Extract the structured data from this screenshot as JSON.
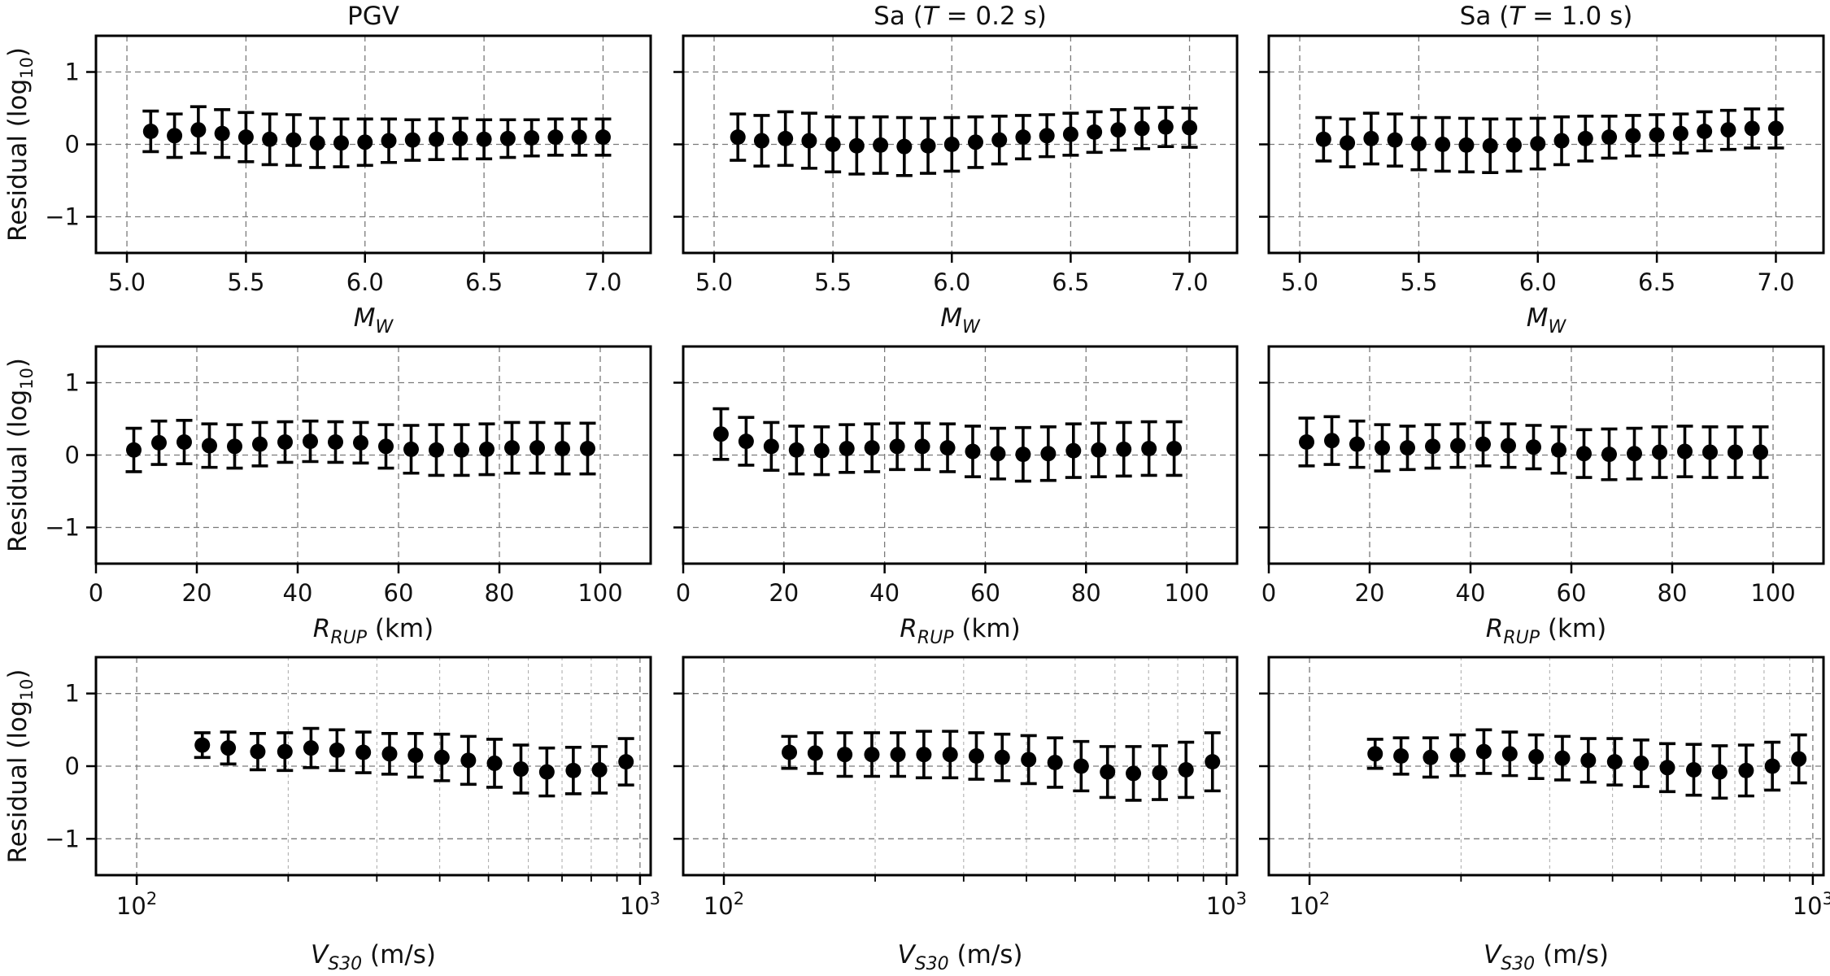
{
  "figure": {
    "column_titles": [
      {
        "text": "PGV"
      },
      {
        "prefix": "Sa (",
        "italic": "T",
        "suffix": " = 0.2 s)"
      },
      {
        "prefix": "Sa (",
        "italic": "T",
        "suffix": " = 1.0 s)"
      }
    ],
    "ylabel": {
      "main": "Residual (log",
      "sub": "10",
      "end": ")"
    },
    "xlabels": [
      {
        "italic": "M",
        "sub": "W",
        "rest": ""
      },
      {
        "italic": "R",
        "sub": "RUP",
        "rest": " (km)"
      },
      {
        "italic": "V",
        "sub": "S30",
        "rest": " (m/s)"
      }
    ],
    "yticks": [
      -1,
      0,
      1
    ],
    "log_tick_labels": [
      {
        "base": "10",
        "exp": "2",
        "value": 100
      },
      {
        "base": "10",
        "exp": "3",
        "value": 1000
      }
    ]
  },
  "chart_data": [
    {
      "type": "errorbar",
      "row": 0,
      "col": 0,
      "title": "PGV",
      "xlabel": "M_W",
      "ylabel": "Residual (log10)",
      "xscale": "linear",
      "xlim": [
        4.87,
        7.2
      ],
      "ylim": [
        -1.5,
        1.5
      ],
      "xticks": [
        5.0,
        5.5,
        6.0,
        6.5,
        7.0
      ],
      "xticklabels": [
        "5.0",
        "5.5",
        "6.0",
        "6.5",
        "7.0"
      ],
      "x": [
        5.1,
        5.2,
        5.3,
        5.4,
        5.5,
        5.6,
        5.7,
        5.8,
        5.9,
        6.0,
        6.1,
        6.2,
        6.3,
        6.4,
        6.5,
        6.6,
        6.7,
        6.8,
        6.9,
        7.0
      ],
      "y": [
        0.18,
        0.12,
        0.2,
        0.15,
        0.1,
        0.07,
        0.06,
        0.02,
        0.02,
        0.03,
        0.05,
        0.06,
        0.07,
        0.08,
        0.07,
        0.08,
        0.09,
        0.1,
        0.1,
        0.1
      ],
      "err": [
        0.28,
        0.3,
        0.32,
        0.33,
        0.34,
        0.35,
        0.35,
        0.34,
        0.33,
        0.32,
        0.3,
        0.28,
        0.28,
        0.28,
        0.27,
        0.26,
        0.25,
        0.25,
        0.25,
        0.25
      ]
    },
    {
      "type": "errorbar",
      "row": 0,
      "col": 1,
      "title": "Sa (T = 0.2 s)",
      "xlabel": "M_W",
      "ylabel": "Residual (log10)",
      "xscale": "linear",
      "xlim": [
        4.87,
        7.2
      ],
      "ylim": [
        -1.5,
        1.5
      ],
      "xticks": [
        5.0,
        5.5,
        6.0,
        6.5,
        7.0
      ],
      "xticklabels": [
        "5.0",
        "5.5",
        "6.0",
        "6.5",
        "7.0"
      ],
      "x": [
        5.1,
        5.2,
        5.3,
        5.4,
        5.5,
        5.6,
        5.7,
        5.8,
        5.9,
        6.0,
        6.1,
        6.2,
        6.3,
        6.4,
        6.5,
        6.6,
        6.7,
        6.8,
        6.9,
        7.0
      ],
      "y": [
        0.1,
        0.05,
        0.08,
        0.05,
        0.0,
        -0.02,
        -0.01,
        -0.03,
        -0.02,
        0.0,
        0.03,
        0.06,
        0.1,
        0.12,
        0.14,
        0.17,
        0.2,
        0.22,
        0.24,
        0.23
      ],
      "err": [
        0.32,
        0.35,
        0.37,
        0.38,
        0.38,
        0.39,
        0.39,
        0.4,
        0.38,
        0.37,
        0.35,
        0.33,
        0.3,
        0.29,
        0.29,
        0.28,
        0.28,
        0.28,
        0.27,
        0.27
      ]
    },
    {
      "type": "errorbar",
      "row": 0,
      "col": 2,
      "title": "Sa (T = 1.0 s)",
      "xlabel": "M_W",
      "ylabel": "Residual (log10)",
      "xscale": "linear",
      "xlim": [
        4.87,
        7.2
      ],
      "ylim": [
        -1.5,
        1.5
      ],
      "xticks": [
        5.0,
        5.5,
        6.0,
        6.5,
        7.0
      ],
      "xticklabels": [
        "5.0",
        "5.5",
        "6.0",
        "6.5",
        "7.0"
      ],
      "x": [
        5.1,
        5.2,
        5.3,
        5.4,
        5.5,
        5.6,
        5.7,
        5.8,
        5.9,
        6.0,
        6.1,
        6.2,
        6.3,
        6.4,
        6.5,
        6.6,
        6.7,
        6.8,
        6.9,
        7.0
      ],
      "y": [
        0.07,
        0.02,
        0.08,
        0.06,
        0.01,
        0.0,
        -0.01,
        -0.02,
        -0.01,
        0.01,
        0.05,
        0.08,
        0.1,
        0.12,
        0.13,
        0.15,
        0.18,
        0.2,
        0.22,
        0.22
      ],
      "err": [
        0.3,
        0.33,
        0.35,
        0.36,
        0.36,
        0.37,
        0.37,
        0.37,
        0.36,
        0.35,
        0.33,
        0.31,
        0.29,
        0.28,
        0.28,
        0.27,
        0.27,
        0.27,
        0.27,
        0.27
      ]
    },
    {
      "type": "errorbar",
      "row": 1,
      "col": 0,
      "title": "PGV",
      "xlabel": "R_RUP (km)",
      "ylabel": "Residual (log10)",
      "xscale": "linear",
      "xlim": [
        0,
        110
      ],
      "ylim": [
        -1.5,
        1.5
      ],
      "xticks": [
        0,
        20,
        40,
        60,
        80,
        100
      ],
      "xticklabels": [
        "0",
        "20",
        "40",
        "60",
        "80",
        "100"
      ],
      "x": [
        7.5,
        12.5,
        17.5,
        22.5,
        27.5,
        32.5,
        37.5,
        42.5,
        47.5,
        52.5,
        57.5,
        62.5,
        67.5,
        72.5,
        77.5,
        82.5,
        87.5,
        92.5,
        97.5
      ],
      "y": [
        0.07,
        0.17,
        0.18,
        0.13,
        0.12,
        0.15,
        0.18,
        0.19,
        0.18,
        0.17,
        0.12,
        0.08,
        0.07,
        0.07,
        0.08,
        0.1,
        0.1,
        0.09,
        0.09
      ],
      "err": [
        0.3,
        0.3,
        0.3,
        0.3,
        0.3,
        0.3,
        0.28,
        0.28,
        0.28,
        0.28,
        0.3,
        0.33,
        0.35,
        0.35,
        0.35,
        0.35,
        0.35,
        0.35,
        0.35
      ]
    },
    {
      "type": "errorbar",
      "row": 1,
      "col": 1,
      "title": "Sa (T = 0.2 s)",
      "xlabel": "R_RUP (km)",
      "ylabel": "Residual (log10)",
      "xscale": "linear",
      "xlim": [
        0,
        110
      ],
      "ylim": [
        -1.5,
        1.5
      ],
      "xticks": [
        0,
        20,
        40,
        60,
        80,
        100
      ],
      "xticklabels": [
        "0",
        "20",
        "40",
        "60",
        "80",
        "100"
      ],
      "x": [
        7.5,
        12.5,
        17.5,
        22.5,
        27.5,
        32.5,
        37.5,
        42.5,
        47.5,
        52.5,
        57.5,
        62.5,
        67.5,
        72.5,
        77.5,
        82.5,
        87.5,
        92.5,
        97.5
      ],
      "y": [
        0.29,
        0.19,
        0.12,
        0.07,
        0.06,
        0.09,
        0.1,
        0.12,
        0.12,
        0.1,
        0.05,
        0.02,
        0.01,
        0.02,
        0.06,
        0.07,
        0.08,
        0.09,
        0.09
      ],
      "err": [
        0.35,
        0.33,
        0.33,
        0.33,
        0.33,
        0.33,
        0.33,
        0.32,
        0.32,
        0.33,
        0.35,
        0.35,
        0.37,
        0.37,
        0.37,
        0.37,
        0.37,
        0.37,
        0.37
      ]
    },
    {
      "type": "errorbar",
      "row": 1,
      "col": 2,
      "title": "Sa (T = 1.0 s)",
      "xlabel": "R_RUP (km)",
      "ylabel": "Residual (log10)",
      "xscale": "linear",
      "xlim": [
        0,
        110
      ],
      "ylim": [
        -1.5,
        1.5
      ],
      "xticks": [
        0,
        20,
        40,
        60,
        80,
        100
      ],
      "xticklabels": [
        "0",
        "20",
        "40",
        "60",
        "80",
        "100"
      ],
      "x": [
        7.5,
        12.5,
        17.5,
        22.5,
        27.5,
        32.5,
        37.5,
        42.5,
        47.5,
        52.5,
        57.5,
        62.5,
        67.5,
        72.5,
        77.5,
        82.5,
        87.5,
        92.5,
        97.5
      ],
      "y": [
        0.18,
        0.2,
        0.15,
        0.1,
        0.1,
        0.12,
        0.13,
        0.15,
        0.13,
        0.11,
        0.07,
        0.02,
        0.01,
        0.02,
        0.04,
        0.05,
        0.04,
        0.04,
        0.04
      ],
      "err": [
        0.33,
        0.33,
        0.32,
        0.32,
        0.3,
        0.3,
        0.3,
        0.3,
        0.3,
        0.3,
        0.32,
        0.33,
        0.35,
        0.35,
        0.35,
        0.35,
        0.35,
        0.35,
        0.35
      ]
    },
    {
      "type": "errorbar",
      "row": 2,
      "col": 0,
      "title": "PGV",
      "xlabel": "V_S30 (m/s)",
      "ylabel": "Residual (log10)",
      "xscale": "log",
      "xlim": [
        83,
        1050
      ],
      "ylim": [
        -1.5,
        1.5
      ],
      "minor_grid": [
        200,
        300,
        400,
        500,
        600,
        700,
        800,
        900
      ],
      "x": [
        135,
        152,
        174,
        197,
        222,
        250,
        282,
        318,
        358,
        404,
        456,
        514,
        580,
        653,
        737,
        831,
        938
      ],
      "y": [
        0.29,
        0.25,
        0.2,
        0.2,
        0.25,
        0.22,
        0.19,
        0.17,
        0.15,
        0.12,
        0.08,
        0.04,
        -0.04,
        -0.08,
        -0.06,
        -0.05,
        0.06
      ],
      "err": [
        0.17,
        0.22,
        0.25,
        0.26,
        0.27,
        0.28,
        0.28,
        0.28,
        0.3,
        0.32,
        0.33,
        0.33,
        0.33,
        0.33,
        0.32,
        0.32,
        0.32
      ]
    },
    {
      "type": "errorbar",
      "row": 2,
      "col": 1,
      "title": "Sa (T = 0.2 s)",
      "xlabel": "V_S30 (m/s)",
      "ylabel": "Residual (log10)",
      "xscale": "log",
      "xlim": [
        83,
        1050
      ],
      "ylim": [
        -1.5,
        1.5
      ],
      "minor_grid": [
        200,
        300,
        400,
        500,
        600,
        700,
        800,
        900
      ],
      "x": [
        135,
        152,
        174,
        197,
        222,
        250,
        282,
        318,
        358,
        404,
        456,
        514,
        580,
        653,
        737,
        831,
        938
      ],
      "y": [
        0.19,
        0.18,
        0.16,
        0.16,
        0.16,
        0.16,
        0.16,
        0.14,
        0.12,
        0.09,
        0.05,
        0.0,
        -0.08,
        -0.1,
        -0.09,
        -0.05,
        0.06
      ],
      "err": [
        0.22,
        0.28,
        0.3,
        0.3,
        0.3,
        0.32,
        0.32,
        0.32,
        0.32,
        0.33,
        0.34,
        0.34,
        0.35,
        0.37,
        0.37,
        0.38,
        0.4
      ]
    },
    {
      "type": "errorbar",
      "row": 2,
      "col": 2,
      "title": "Sa (T = 1.0 s)",
      "xlabel": "V_S30 (m/s)",
      "ylabel": "Residual (log10)",
      "xscale": "log",
      "xlim": [
        83,
        1050
      ],
      "ylim": [
        -1.5,
        1.5
      ],
      "minor_grid": [
        200,
        300,
        400,
        500,
        600,
        700,
        800,
        900
      ],
      "x": [
        135,
        152,
        174,
        197,
        222,
        250,
        282,
        318,
        358,
        404,
        456,
        514,
        580,
        653,
        737,
        831,
        938
      ],
      "y": [
        0.17,
        0.14,
        0.12,
        0.15,
        0.2,
        0.17,
        0.13,
        0.11,
        0.08,
        0.06,
        0.04,
        -0.02,
        -0.05,
        -0.08,
        -0.06,
        0.0,
        0.1
      ],
      "err": [
        0.2,
        0.25,
        0.27,
        0.28,
        0.3,
        0.3,
        0.3,
        0.3,
        0.3,
        0.32,
        0.32,
        0.33,
        0.35,
        0.36,
        0.35,
        0.33,
        0.33
      ]
    }
  ]
}
